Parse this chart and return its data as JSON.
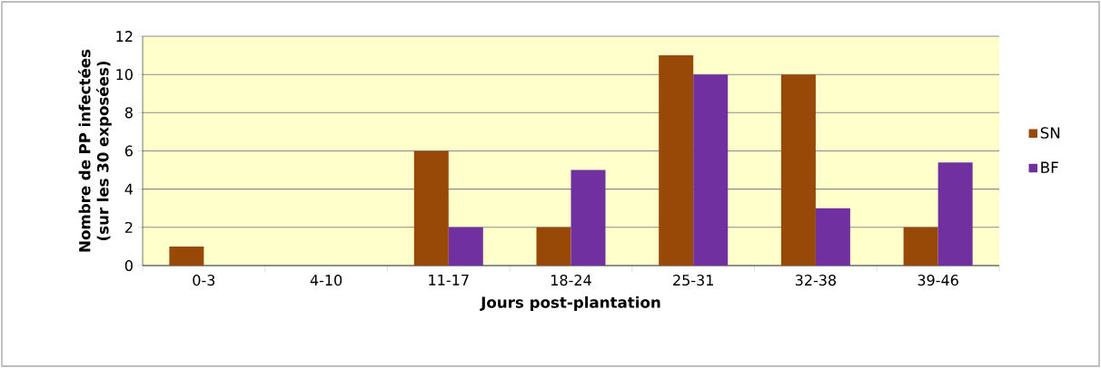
{
  "chart_data": {
    "type": "bar",
    "xlabel": "Jours post-plantation",
    "ylabel": "Nombre de PP infectées (sur les 30 exposées)",
    "categories": [
      "0-3",
      "4-10",
      "11-17",
      "18-24",
      "25-31",
      "32-38",
      "39-46"
    ],
    "series": [
      {
        "name": "SN",
        "color": "#984807",
        "values": [
          1,
          0,
          6,
          2,
          11,
          10,
          2
        ]
      },
      {
        "name": "BF",
        "color": "#7030a0",
        "values": [
          0,
          0,
          2,
          5,
          10,
          3,
          5.4
        ]
      }
    ],
    "ylim": [
      0,
      12
    ],
    "yticks": [
      0,
      2,
      4,
      6,
      8,
      10,
      12
    ],
    "grid": "y",
    "legend": "right"
  }
}
